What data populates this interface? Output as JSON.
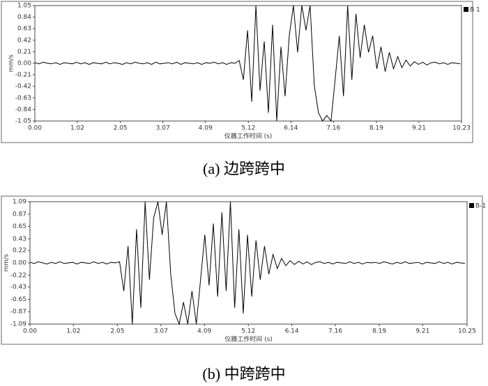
{
  "chart_data": [
    {
      "type": "line",
      "caption": "(a) 边跨跨中",
      "ylabel": "mm/s",
      "xlabel": "仪器工作时间 (s)",
      "xlim": [
        0,
        10.23
      ],
      "xticks": [
        {
          "value": 0,
          "label": "0.00"
        },
        1.02,
        2.05,
        3.07,
        4.09,
        5.12,
        6.14,
        7.16,
        8.19,
        9.21,
        10.23
      ],
      "ylim": [
        -1.05,
        1.05
      ],
      "yticks": [
        -1.05,
        -0.84,
        -0.63,
        -0.42,
        -0.21,
        {
          "value": 0,
          "label": "0.00"
        },
        0.21,
        0.42,
        0.63,
        0.84,
        1.05
      ],
      "x": [
        0,
        0.1,
        0.2,
        0.3,
        0.4,
        0.5,
        0.6,
        0.7,
        0.8,
        0.9,
        1,
        1.1,
        1.2,
        1.3,
        1.4,
        1.5,
        1.6,
        1.7,
        1.8,
        1.9,
        2,
        2.1,
        2.2,
        2.3,
        2.4,
        2.5,
        2.6,
        2.7,
        2.8,
        2.9,
        3,
        3.1,
        3.2,
        3.3,
        3.4,
        3.5,
        3.6,
        3.7,
        3.8,
        3.9,
        4,
        4.1,
        4.2,
        4.3,
        4.4,
        4.5,
        4.6,
        4.7,
        4.8,
        4.9,
        5,
        5.1,
        5.2,
        5.3,
        5.4,
        5.5,
        5.6,
        5.7,
        5.8,
        5.9,
        6,
        6.1,
        6.2,
        6.3,
        6.4,
        6.5,
        6.6,
        6.7,
        6.8,
        6.9,
        7,
        7.1,
        7.2,
        7.3,
        7.4,
        7.5,
        7.6,
        7.7,
        7.8,
        7.9,
        8,
        8.1,
        8.2,
        8.3,
        8.4,
        8.5,
        8.6,
        8.7,
        8.8,
        8.9,
        9,
        9.1,
        9.2,
        9.3,
        9.4,
        9.5,
        9.6,
        9.7,
        9.8,
        9.9,
        10,
        10.1,
        10.2
      ],
      "series": [
        {
          "name": "B 1",
          "color": "#000000",
          "values": [
            0.01,
            -0.01,
            0.02,
            0,
            -0.01,
            0.01,
            -0.02,
            0.01,
            0,
            -0.01,
            0.02,
            -0.01,
            0.01,
            -0.02,
            0.01,
            0,
            -0.01,
            0.02,
            -0.01,
            0.01,
            0,
            -0.02,
            0.01,
            -0.01,
            0.02,
            0,
            -0.01,
            0.01,
            -0.02,
            0.02,
            -0.01,
            0,
            0.01,
            -0.01,
            0.02,
            -0.02,
            0.01,
            0,
            -0.01,
            0.01,
            -0.02,
            0.01,
            0,
            0.02,
            -0.01,
            0.01,
            -0.02,
            0.01,
            0,
            0.05,
            -0.3,
            0.6,
            -0.7,
            1.05,
            -0.5,
            0.4,
            -0.9,
            0.7,
            -1.05,
            0.3,
            -0.6,
            0.5,
            1.05,
            0.2,
            1.05,
            0.6,
            1.05,
            -0.4,
            -0.9,
            -1.05,
            -0.95,
            -1.05,
            -0.3,
            0.5,
            -0.6,
            1.05,
            -0.3,
            0.9,
            0.1,
            0.7,
            0.2,
            0.5,
            -0.1,
            0.3,
            -0.15,
            0.2,
            -0.1,
            0.12,
            -0.08,
            0.06,
            -0.05,
            0.03,
            -0.02,
            0.02,
            -0.03,
            0.01,
            0.02,
            -0.01,
            0.01,
            -0.02,
            0.01,
            0,
            -0.01
          ]
        }
      ]
    },
    {
      "type": "line",
      "caption": "(b) 中跨跨中",
      "ylabel": "mm/s",
      "xlabel": "仪器工作时间 (s)",
      "xlim": [
        0,
        10.25
      ],
      "xticks": [
        {
          "value": 0,
          "label": "0.00"
        },
        1.02,
        2.05,
        3.07,
        4.09,
        5.12,
        6.14,
        7.16,
        8.19,
        9.21,
        10.25
      ],
      "ylim": [
        -1.09,
        1.09
      ],
      "yticks": [
        -1.09,
        -0.87,
        -0.65,
        -0.43,
        -0.22,
        {
          "value": 0,
          "label": "0.00"
        },
        0.22,
        0.43,
        0.65,
        0.87,
        1.09
      ],
      "x": [
        0,
        0.1,
        0.2,
        0.3,
        0.4,
        0.5,
        0.6,
        0.7,
        0.8,
        0.9,
        1,
        1.1,
        1.2,
        1.3,
        1.4,
        1.5,
        1.6,
        1.7,
        1.8,
        1.9,
        2,
        2.1,
        2.2,
        2.3,
        2.4,
        2.5,
        2.6,
        2.7,
        2.8,
        2.9,
        3,
        3.1,
        3.2,
        3.3,
        3.4,
        3.5,
        3.6,
        3.7,
        3.8,
        3.9,
        4,
        4.1,
        4.2,
        4.3,
        4.4,
        4.5,
        4.6,
        4.7,
        4.8,
        4.9,
        5,
        5.1,
        5.2,
        5.3,
        5.4,
        5.5,
        5.6,
        5.7,
        5.8,
        5.9,
        6,
        6.1,
        6.2,
        6.3,
        6.4,
        6.5,
        6.6,
        6.7,
        6.8,
        6.9,
        7,
        7.1,
        7.2,
        7.3,
        7.4,
        7.5,
        7.6,
        7.7,
        7.8,
        7.9,
        8,
        8.1,
        8.2,
        8.3,
        8.4,
        8.5,
        8.6,
        8.7,
        8.8,
        8.9,
        9,
        9.1,
        9.2,
        9.3,
        9.4,
        9.5,
        9.6,
        9.7,
        9.8,
        9.9,
        10,
        10.1,
        10.2
      ],
      "series": [
        {
          "name": "B-1",
          "color": "#000000",
          "values": [
            0.01,
            -0.01,
            0.02,
            0,
            -0.02,
            0.01,
            -0.01,
            0.02,
            -0.01,
            0,
            0.01,
            -0.02,
            0.01,
            0,
            -0.01,
            0.02,
            -0.01,
            0.01,
            -0.02,
            0.01,
            0,
            0.02,
            -0.5,
            0.3,
            -1.09,
            0.6,
            -0.8,
            1.09,
            -0.3,
            0.8,
            1.09,
            0.5,
            1.09,
            -0.2,
            -0.9,
            -1.09,
            -0.7,
            -1.09,
            -0.5,
            -1.09,
            -0.3,
            0.5,
            -0.4,
            0.7,
            -0.6,
            0.9,
            -0.5,
            1.09,
            -0.8,
            0.6,
            -0.9,
            0.5,
            -0.6,
            0.4,
            -0.3,
            0.3,
            -0.2,
            0.15,
            -0.1,
            0.08,
            -0.05,
            0.04,
            -0.03,
            0.03,
            -0.02,
            0.02,
            -0.03,
            0.01,
            0.02,
            -0.01,
            0.01,
            -0.02,
            0.01,
            0,
            -0.01,
            0.02,
            -0.01,
            0.01,
            -0.02,
            0.01,
            0,
            0.01,
            -0.01,
            0.02,
            0,
            -0.02,
            0.01,
            -0.01,
            0.02,
            -0.01,
            0,
            0.01,
            -0.02,
            0.01,
            0,
            -0.01,
            0.02,
            -0.01,
            0.01,
            -0.02,
            0.01,
            0,
            -0.01
          ]
        }
      ]
    }
  ]
}
